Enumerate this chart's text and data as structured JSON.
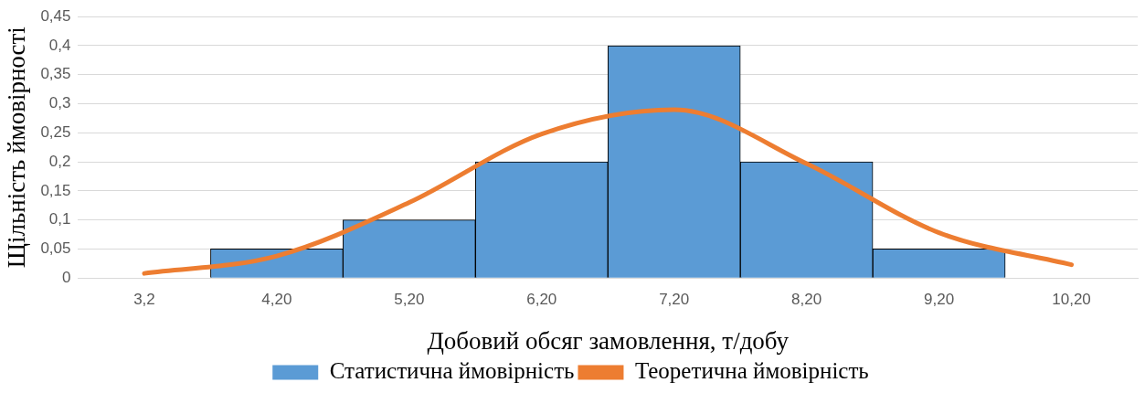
{
  "chart_data": {
    "type": "bar",
    "xlabel": "Добовий обсяг замовлення, т/добу",
    "ylabel": "Щільність ймовірності",
    "categories": [
      "3,2",
      "4,20",
      "5,20",
      "6,20",
      "7,20",
      "8,20",
      "9,20",
      "10,20"
    ],
    "series": [
      {
        "name": "Статистична ймовірність",
        "color": "#5b9bd5",
        "values": [
          null,
          0.05,
          0.1,
          0.2,
          0.4,
          0.2,
          0.05,
          null
        ]
      },
      {
        "name": "Теоретична ймовірність",
        "type": "line",
        "color": "#ed7d31",
        "values": [
          0.008,
          0.038,
          0.13,
          0.248,
          0.29,
          0.197,
          0.078,
          0.023
        ]
      }
    ],
    "ylim": [
      0,
      0.45
    ],
    "yticks": [
      {
        "value": 0,
        "label": "0"
      },
      {
        "value": 0.05,
        "label": "0,05"
      },
      {
        "value": 0.1,
        "label": "0,1"
      },
      {
        "value": 0.15,
        "label": "0,15"
      },
      {
        "value": 0.2,
        "label": "0,2"
      },
      {
        "value": 0.25,
        "label": "0,25"
      },
      {
        "value": 0.3,
        "label": "0,3"
      },
      {
        "value": 0.35,
        "label": "0,35"
      },
      {
        "value": 0.4,
        "label": "0,4"
      },
      {
        "value": 0.45,
        "label": "0,45"
      }
    ],
    "grid": "y",
    "legend": "bottom",
    "marker": "none",
    "line_style": "solid"
  }
}
